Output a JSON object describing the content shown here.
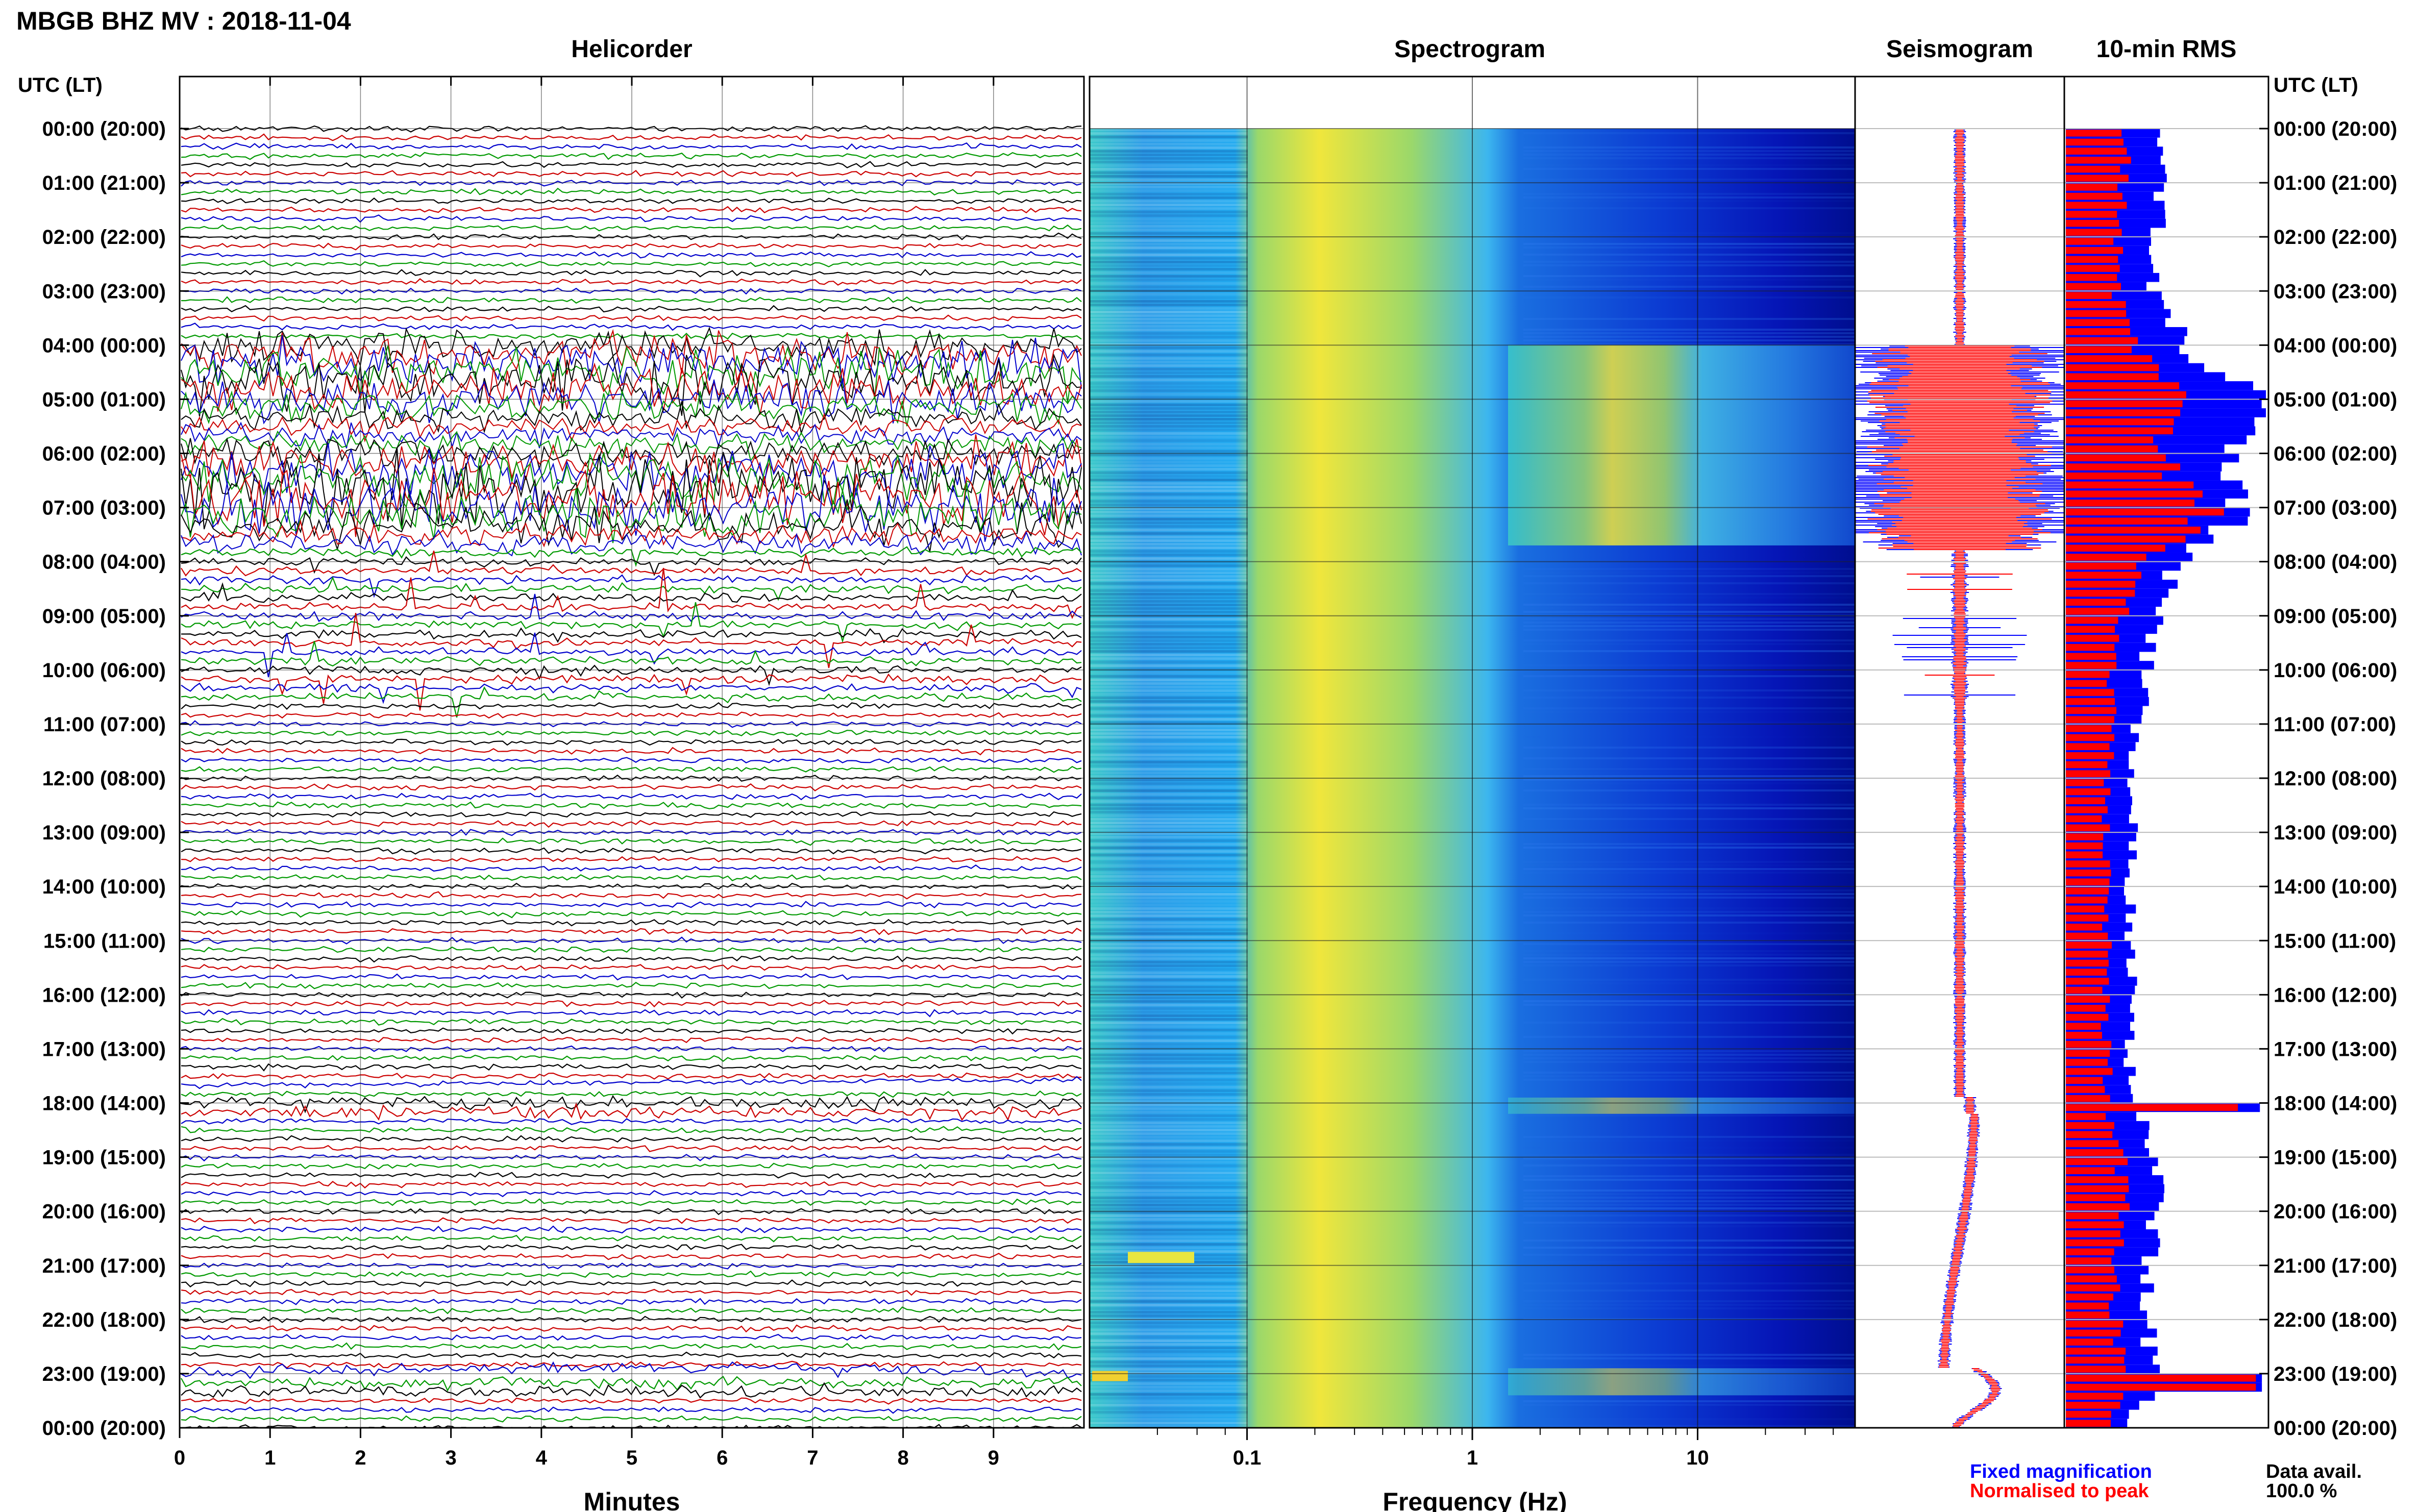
{
  "header": {
    "title": "MBGB BHZ MV : 2018-11-04"
  },
  "panels": {
    "helicorder": "Helicorder",
    "spectrogram": "Spectrogram",
    "seismogram": "Seismogram",
    "rms": "10-min RMS"
  },
  "time_axis": {
    "label": "UTC (LT)",
    "ticks": [
      "00:00 (20:00)",
      "01:00 (21:00)",
      "02:00 (22:00)",
      "03:00 (23:00)",
      "04:00 (00:00)",
      "05:00 (01:00)",
      "06:00 (02:00)",
      "07:00 (03:00)",
      "08:00 (04:00)",
      "09:00 (05:00)",
      "10:00 (06:00)",
      "11:00 (07:00)",
      "12:00 (08:00)",
      "13:00 (09:00)",
      "14:00 (10:00)",
      "15:00 (11:00)",
      "16:00 (12:00)",
      "17:00 (13:00)",
      "18:00 (14:00)",
      "19:00 (15:00)",
      "20:00 (16:00)",
      "21:00 (17:00)",
      "22:00 (18:00)",
      "23:00 (19:00)",
      "00:00 (20:00)"
    ]
  },
  "minutes_axis": {
    "label": "Minutes",
    "ticks": [
      "0",
      "1",
      "2",
      "3",
      "4",
      "5",
      "6",
      "7",
      "8",
      "9"
    ]
  },
  "frequency_axis": {
    "label": "Frequency (Hz)",
    "ticks": [
      "0.1",
      "1",
      "10"
    ]
  },
  "legend": {
    "fixed": {
      "label": "Fixed magnification",
      "color": "#0000ff"
    },
    "normalised": {
      "label": "Normalised to peak",
      "color": "#ff0000"
    }
  },
  "data_availability": {
    "label": "Data avail.",
    "value": "100.0 %"
  },
  "colors": {
    "trace_cycle": [
      "#000000",
      "#cc0000",
      "#0000cc",
      "#009900"
    ],
    "fixed": "#0000ff",
    "normalised": "#ff0000"
  },
  "chart_data": [
    {
      "type": "line",
      "panel": "Helicorder",
      "xlabel": "Minutes",
      "xlim": [
        0,
        10
      ],
      "rows_per_hour": 6,
      "hours": 24,
      "note_activity": "large amplitude 04:00-08:00 UTC, spikes to ~10:30, long-period drift near 17:40 and 23:00"
    },
    {
      "type": "heatmap",
      "panel": "Spectrogram",
      "xlabel": "Frequency (Hz)",
      "x_scale": "log",
      "xlim": [
        0.02,
        50
      ],
      "colormap": "jet",
      "peak_band_hz": [
        0.15,
        0.5
      ],
      "high_energy_hours_utc": [
        [
          4.0,
          7.7
        ],
        [
          17.9,
          18.2
        ],
        [
          22.9,
          23.4
        ]
      ]
    },
    {
      "type": "line",
      "panel": "Seismogram",
      "series": [
        {
          "name": "Fixed magnification",
          "color": "#0000ff"
        },
        {
          "name": "Normalised to peak",
          "color": "#ff0000"
        }
      ]
    },
    {
      "type": "bar",
      "panel": "10-min RMS",
      "orientation": "horizontal",
      "series": [
        {
          "name": "Fixed magnification",
          "color": "#0000ff",
          "hourly_values": [
            0.5,
            0.48,
            0.46,
            0.45,
            0.6,
            1.0,
            0.8,
            0.92,
            0.55,
            0.45,
            0.4,
            0.36,
            0.34,
            0.33,
            0.33,
            0.32,
            0.32,
            0.32,
            0.35,
            0.45,
            0.45,
            0.4,
            0.4,
            0.45,
            0.3
          ]
        },
        {
          "name": "Normalised to peak",
          "color": "#ff0000",
          "hourly_values": [
            0.3,
            0.28,
            0.26,
            0.25,
            0.35,
            0.6,
            0.45,
            0.75,
            0.35,
            0.27,
            0.24,
            0.22,
            0.21,
            0.2,
            0.2,
            0.2,
            0.2,
            0.2,
            0.22,
            0.28,
            0.28,
            0.25,
            0.25,
            0.28,
            0.2
          ]
        }
      ]
    }
  ]
}
